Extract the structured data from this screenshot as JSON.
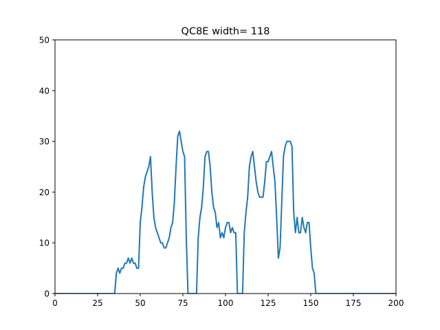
{
  "chart_data": {
    "type": "line",
    "title": "QC8E width= 118",
    "xlabel": "",
    "ylabel": "",
    "xlim": [
      0,
      200
    ],
    "ylim": [
      0,
      50
    ],
    "xticks": [
      0,
      25,
      50,
      75,
      100,
      125,
      150,
      175,
      200
    ],
    "yticks": [
      0,
      10,
      20,
      30,
      40,
      50
    ],
    "grid": false,
    "legend": "none",
    "series": [
      {
        "color": "#1f77b4",
        "points": [
          [
            0,
            0
          ],
          [
            35,
            0
          ],
          [
            36,
            4
          ],
          [
            37,
            5
          ],
          [
            38,
            4
          ],
          [
            39,
            5
          ],
          [
            40,
            5
          ],
          [
            41,
            6
          ],
          [
            42,
            6
          ],
          [
            43,
            7
          ],
          [
            44,
            6
          ],
          [
            45,
            7
          ],
          [
            46,
            6
          ],
          [
            47,
            6
          ],
          [
            48,
            5
          ],
          [
            49,
            5
          ],
          [
            50,
            14
          ],
          [
            51,
            17
          ],
          [
            52,
            21
          ],
          [
            53,
            23
          ],
          [
            54,
            24
          ],
          [
            55,
            25
          ],
          [
            56,
            27
          ],
          [
            57,
            20
          ],
          [
            58,
            15
          ],
          [
            59,
            13
          ],
          [
            60,
            12
          ],
          [
            61,
            11
          ],
          [
            62,
            10
          ],
          [
            63,
            10
          ],
          [
            64,
            9
          ],
          [
            65,
            9
          ],
          [
            66,
            10
          ],
          [
            67,
            11
          ],
          [
            68,
            13
          ],
          [
            69,
            14
          ],
          [
            70,
            18
          ],
          [
            71,
            25
          ],
          [
            72,
            31
          ],
          [
            73,
            32
          ],
          [
            74,
            30
          ],
          [
            75,
            28
          ],
          [
            76,
            27
          ],
          [
            77,
            11
          ],
          [
            78,
            0
          ],
          [
            79,
            0
          ],
          [
            80,
            0
          ],
          [
            81,
            0
          ],
          [
            82,
            0
          ],
          [
            83,
            0
          ],
          [
            84,
            11
          ],
          [
            85,
            15
          ],
          [
            86,
            17
          ],
          [
            87,
            21
          ],
          [
            88,
            27
          ],
          [
            89,
            28
          ],
          [
            90,
            28
          ],
          [
            91,
            25
          ],
          [
            92,
            20
          ],
          [
            93,
            17
          ],
          [
            94,
            16
          ],
          [
            95,
            13
          ],
          [
            96,
            14
          ],
          [
            97,
            11
          ],
          [
            98,
            12
          ],
          [
            99,
            11
          ],
          [
            100,
            13
          ],
          [
            101,
            14
          ],
          [
            102,
            14
          ],
          [
            103,
            12
          ],
          [
            104,
            13
          ],
          [
            105,
            12
          ],
          [
            106,
            12
          ],
          [
            107,
            0
          ],
          [
            108,
            0
          ],
          [
            109,
            0
          ],
          [
            110,
            0
          ],
          [
            111,
            12
          ],
          [
            112,
            16
          ],
          [
            113,
            19
          ],
          [
            114,
            25
          ],
          [
            115,
            27
          ],
          [
            116,
            28
          ],
          [
            117,
            25
          ],
          [
            118,
            22
          ],
          [
            119,
            20
          ],
          [
            120,
            19
          ],
          [
            121,
            19
          ],
          [
            122,
            19
          ],
          [
            123,
            22
          ],
          [
            124,
            26
          ],
          [
            125,
            26
          ],
          [
            126,
            27
          ],
          [
            127,
            28
          ],
          [
            128,
            25
          ],
          [
            129,
            22
          ],
          [
            130,
            15
          ],
          [
            131,
            7
          ],
          [
            132,
            9
          ],
          [
            133,
            18
          ],
          [
            134,
            27
          ],
          [
            135,
            29
          ],
          [
            136,
            30
          ],
          [
            137,
            30
          ],
          [
            138,
            30
          ],
          [
            139,
            29
          ],
          [
            140,
            16
          ],
          [
            141,
            12
          ],
          [
            142,
            15
          ],
          [
            143,
            12
          ],
          [
            144,
            12
          ],
          [
            145,
            15
          ],
          [
            146,
            13
          ],
          [
            147,
            12
          ],
          [
            148,
            14
          ],
          [
            149,
            14
          ],
          [
            150,
            9
          ],
          [
            151,
            5
          ],
          [
            152,
            4
          ],
          [
            153,
            0
          ],
          [
            160,
            0
          ],
          [
            175,
            0
          ],
          [
            200,
            0
          ]
        ]
      }
    ]
  }
}
